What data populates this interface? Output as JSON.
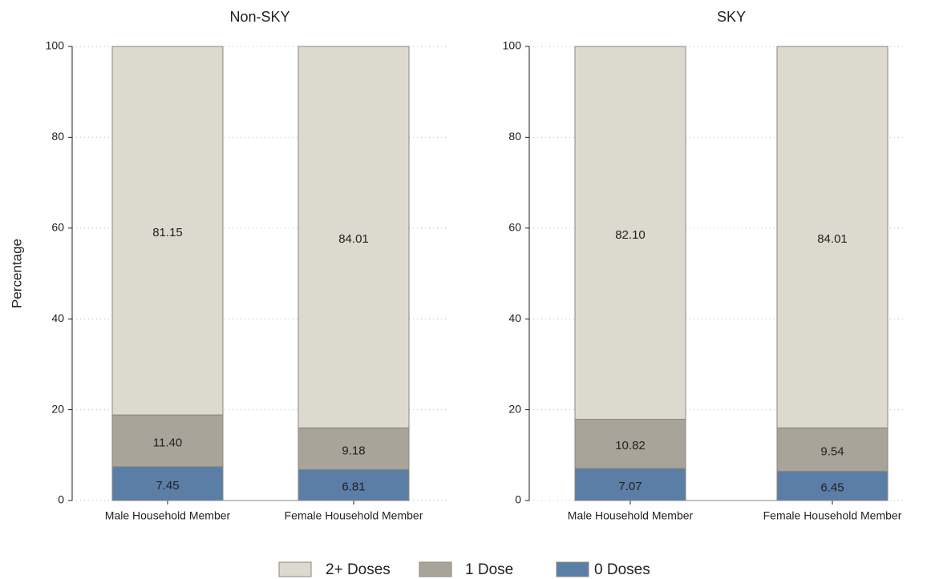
{
  "chart_data": [
    {
      "type": "stacked_bar",
      "title": "Non-SKY",
      "y_label": "Percentage",
      "categories": [
        "Male Household Member",
        "Female Household Member"
      ],
      "series": [
        {
          "name": "2+ Doses",
          "color": "#dcd9ce",
          "values": [
            81.15,
            84.01
          ],
          "value_labels": [
            "81.15",
            "84.01"
          ]
        },
        {
          "name": "1 Dose",
          "color": "#a8a49a",
          "values": [
            11.4,
            9.18
          ],
          "value_labels": [
            "11.40",
            "9.18"
          ]
        },
        {
          "name": "0 Doses",
          "color": "#5b7ea6",
          "values": [
            7.45,
            6.81
          ],
          "value_labels": [
            "7.45",
            "6.81"
          ]
        }
      ],
      "ylim": [
        0,
        100
      ],
      "yticks": [
        0,
        20,
        40,
        60,
        80,
        100
      ],
      "grid": true,
      "legend": "bottom"
    },
    {
      "type": "stacked_bar",
      "title": "SKY",
      "categories": [
        "Male Household Member",
        "Female Household Member"
      ],
      "series": [
        {
          "color": "#dcd9ce",
          "values": [
            82.1,
            84.01
          ],
          "value_labels": [
            "82.10",
            "84.01"
          ]
        },
        {
          "color": "#a8a49a",
          "values": [
            10.82,
            9.54
          ],
          "value_labels": [
            "10.82",
            "9.54"
          ]
        },
        {
          "color": "#5b7ea6",
          "values": [
            7.07,
            6.45
          ],
          "value_labels": [
            "7.07",
            "6.45"
          ]
        }
      ],
      "ylim": [
        0,
        100
      ],
      "yticks": [
        0,
        20,
        40,
        60,
        80,
        100
      ],
      "grid": true
    }
  ]
}
